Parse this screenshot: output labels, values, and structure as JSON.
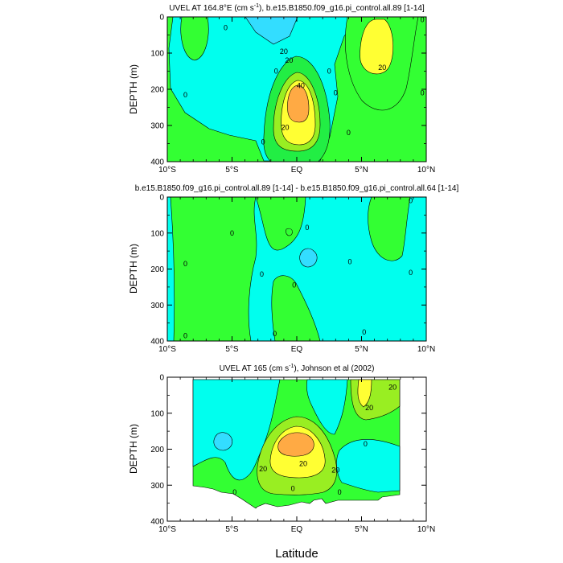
{
  "figure": {
    "xlabel": "Latitude",
    "ylabel": "DEPTH (m)"
  },
  "chart_data": [
    {
      "type": "heatmap",
      "title_parts": [
        "UVEL AT 164.8°E (cm s",
        "-1",
        "), b.e15.B1850.f09_g16.pi_control.all.89 [1-14]"
      ],
      "xlabel": "",
      "ylabel": "DEPTH (m)",
      "xlim": [
        -10,
        10
      ],
      "ylim": [
        400,
        0
      ],
      "xticks": [
        -10,
        -5,
        0,
        5,
        10
      ],
      "xtick_labels": [
        "10°S",
        "5°S",
        "EQ",
        "5°N",
        "10°N"
      ],
      "yticks": [
        0,
        100,
        200,
        300,
        400
      ],
      "ytick_labels": [
        "0",
        "100",
        "200",
        "300",
        "400"
      ],
      "contour_labels": [
        {
          "text": "20",
          "lat": -1.0,
          "depth": 95
        },
        {
          "text": "0",
          "lat": -5.5,
          "depth": 30
        },
        {
          "text": "0",
          "lat": -8.6,
          "depth": 215
        },
        {
          "text": "0",
          "lat": -1.6,
          "depth": 150
        },
        {
          "text": "20",
          "lat": -0.6,
          "depth": 120
        },
        {
          "text": "40",
          "lat": 0.3,
          "depth": 190
        },
        {
          "text": "20",
          "lat": -0.9,
          "depth": 305
        },
        {
          "text": "0",
          "lat": -2.6,
          "depth": 345
        },
        {
          "text": "0",
          "lat": 2.5,
          "depth": 150
        },
        {
          "text": "0",
          "lat": 3.0,
          "depth": 210
        },
        {
          "text": "0",
          "lat": 4.0,
          "depth": 320
        },
        {
          "text": "20",
          "lat": 6.6,
          "depth": 140
        },
        {
          "text": "0",
          "lat": 9.7,
          "depth": 8
        },
        {
          "text": "0",
          "lat": 9.7,
          "depth": 210
        }
      ]
    },
    {
      "type": "heatmap",
      "title_parts": [
        "b.e15.B1850.f09_g16.pi_control.all.89 [1-14] - b.e15.B1850.f09_g16.pi_control.all.64 [1-14]"
      ],
      "xlabel": "",
      "ylabel": "DEPTH (m)",
      "xlim": [
        -10,
        10
      ],
      "ylim": [
        400,
        0
      ],
      "xticks": [
        -10,
        -5,
        0,
        5,
        10
      ],
      "xtick_labels": [
        "10°S",
        "5°S",
        "EQ",
        "5°N",
        "10°N"
      ],
      "yticks": [
        0,
        100,
        200,
        300,
        400
      ],
      "ytick_labels": [
        "0",
        "100",
        "200",
        "300",
        "400"
      ],
      "contour_labels": [
        {
          "text": "0",
          "lat": -8.6,
          "depth": 185
        },
        {
          "text": "0",
          "lat": -8.6,
          "depth": 385
        },
        {
          "text": "0",
          "lat": -5.0,
          "depth": 100
        },
        {
          "text": "0",
          "lat": -2.7,
          "depth": 215
        },
        {
          "text": "0",
          "lat": 0.8,
          "depth": 85
        },
        {
          "text": "0",
          "lat": -0.2,
          "depth": 245
        },
        {
          "text": "0",
          "lat": -1.7,
          "depth": 380
        },
        {
          "text": "0",
          "lat": 4.1,
          "depth": 180
        },
        {
          "text": "0",
          "lat": 5.2,
          "depth": 375
        },
        {
          "text": "0",
          "lat": 8.8,
          "depth": 10
        },
        {
          "text": "0",
          "lat": 8.8,
          "depth": 210
        }
      ]
    },
    {
      "type": "heatmap",
      "title_parts": [
        "UVEL AT 165 (cm s",
        "-1",
        "), Johnson et al (2002)"
      ],
      "xlabel": "Latitude",
      "ylabel": "DEPTH (m)",
      "xlim": [
        -10,
        10
      ],
      "ylim": [
        400,
        0
      ],
      "xticks": [
        -10,
        -5,
        0,
        5,
        10
      ],
      "xtick_labels": [
        "10°S",
        "5°S",
        "EQ",
        "5°N",
        "10°N"
      ],
      "yticks": [
        0,
        100,
        200,
        300,
        400
      ],
      "ytick_labels": [
        "0",
        "100",
        "200",
        "300",
        "400"
      ],
      "contour_labels": [
        {
          "text": "20",
          "lat": 7.4,
          "depth": 28
        },
        {
          "text": "20",
          "lat": 5.6,
          "depth": 85
        },
        {
          "text": "0",
          "lat": 5.3,
          "depth": 185
        },
        {
          "text": "20",
          "lat": 0.5,
          "depth": 240
        },
        {
          "text": "20",
          "lat": -2.6,
          "depth": 255
        },
        {
          "text": "20",
          "lat": 3.0,
          "depth": 258
        },
        {
          "text": "0",
          "lat": -0.3,
          "depth": 310
        },
        {
          "text": "0",
          "lat": 3.3,
          "depth": 320
        },
        {
          "text": "0",
          "lat": -4.8,
          "depth": 320
        }
      ]
    }
  ]
}
